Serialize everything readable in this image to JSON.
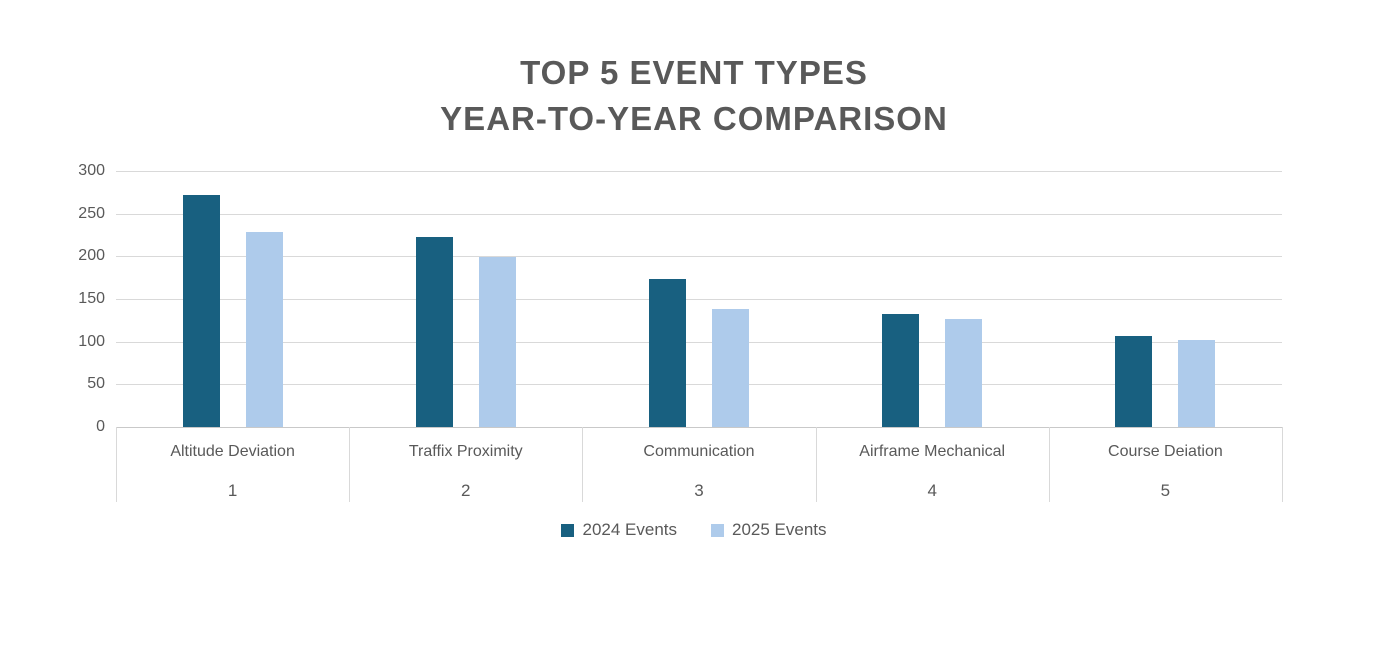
{
  "title": {
    "line1": "TOP 5 EVENT TYPES",
    "line2": "YEAR-TO-YEAR COMPARISON"
  },
  "colors": {
    "series_2024": "#186080",
    "series_2025": "#AECBEB",
    "title_text": "#595959",
    "axis_text": "#595959",
    "gridline": "#D9D9D9",
    "band_border": "#D9D9D9",
    "background": "#FFFFFF"
  },
  "chart_data": {
    "type": "bar",
    "title": "TOP 5 EVENT TYPES YEAR-TO-YEAR COMPARISON",
    "categories": [
      "Altitude Deviation",
      "Traffix Proximity",
      "Communication",
      "Airframe Mechanical",
      "Course Deiation"
    ],
    "category_indices": [
      "1",
      "2",
      "3",
      "4",
      "5"
    ],
    "series": [
      {
        "name": "2024 Events",
        "color": "#186080",
        "values": [
          272,
          223,
          173,
          132,
          107
        ]
      },
      {
        "name": "2025 Events",
        "color": "#AECBEB",
        "values": [
          228,
          199,
          138,
          127,
          102
        ]
      }
    ],
    "xlabel": "",
    "ylabel": "",
    "ylim": [
      0,
      300
    ],
    "yticks": [
      0,
      50,
      100,
      150,
      200,
      250,
      300
    ],
    "grid": true,
    "legend_position": "bottom"
  }
}
